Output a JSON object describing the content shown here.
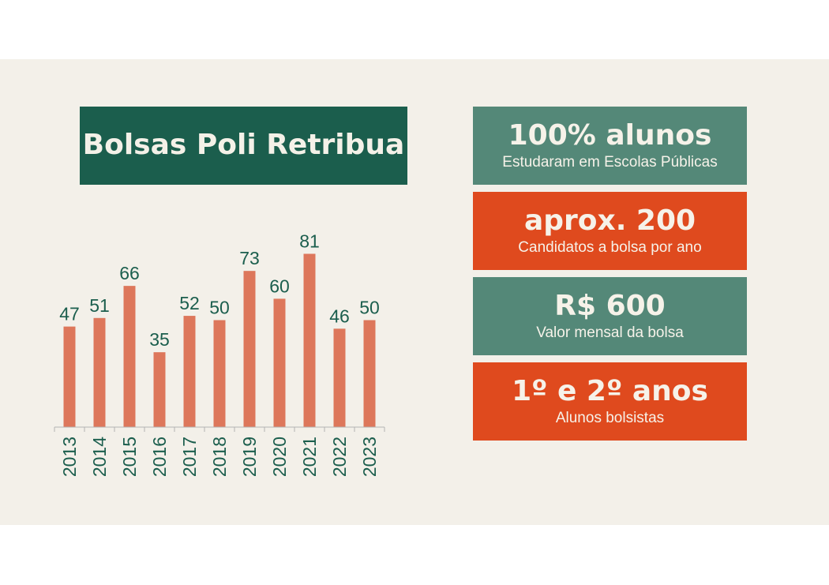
{
  "title": "Bolsas Poli Retribua",
  "colors": {
    "background": "#f3f0e9",
    "title_bg": "#1b5e4d",
    "bar": "#dd775b",
    "label": "#1b5e4d",
    "card_green": "#548878",
    "card_orange": "#df4a1e"
  },
  "chart_data": {
    "type": "bar",
    "categories": [
      "2013",
      "2014",
      "2015",
      "2016",
      "2017",
      "2018",
      "2019",
      "2020",
      "2021",
      "2022",
      "2023"
    ],
    "values": [
      47,
      51,
      66,
      35,
      52,
      50,
      73,
      60,
      81,
      46,
      50
    ],
    "title": "Bolsas Poli Retribua",
    "xlabel": "",
    "ylabel": "",
    "ylim": [
      0,
      85
    ],
    "grid": false,
    "data_labels": true
  },
  "cards": [
    {
      "title": "100% alunos",
      "subtitle": "Estudaram em Escolas Públicas",
      "color": "#548878"
    },
    {
      "title": "aprox. 200",
      "subtitle": "Candidatos a bolsa por ano",
      "color": "#df4a1e"
    },
    {
      "title": "R$ 600",
      "subtitle": "Valor mensal da bolsa",
      "color": "#548878"
    },
    {
      "title": "1º e 2º anos",
      "subtitle": "Alunos bolsistas",
      "color": "#df4a1e"
    }
  ]
}
